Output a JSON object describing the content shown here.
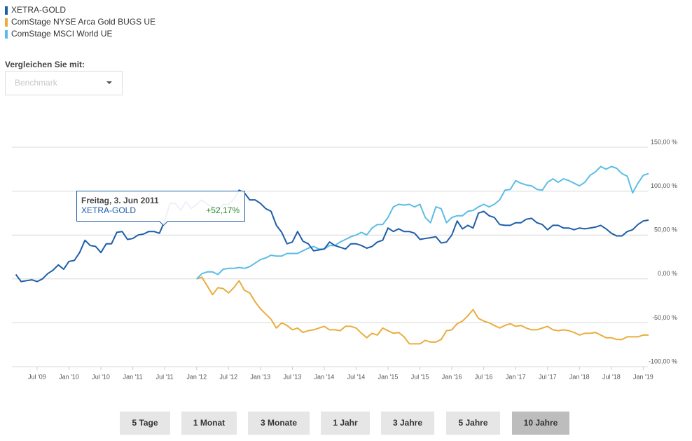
{
  "chart_data": {
    "type": "line",
    "x": [
      "2009-03",
      "2009-04",
      "2009-05",
      "2009-06",
      "2009-07",
      "2009-08",
      "2009-09",
      "2009-10",
      "2009-11",
      "2009-12",
      "2010-01",
      "2010-02",
      "2010-03",
      "2010-04",
      "2010-05",
      "2010-06",
      "2010-07",
      "2010-08",
      "2010-09",
      "2010-10",
      "2010-11",
      "2010-12",
      "2011-01",
      "2011-02",
      "2011-03",
      "2011-04",
      "2011-05",
      "2011-06",
      "2011-07",
      "2011-08",
      "2011-09",
      "2011-10",
      "2011-11",
      "2011-12",
      "2012-01",
      "2012-02",
      "2012-03",
      "2012-04",
      "2012-05",
      "2012-06",
      "2012-07",
      "2012-08",
      "2012-09",
      "2012-10",
      "2012-11",
      "2012-12",
      "2013-01",
      "2013-02",
      "2013-03",
      "2013-04",
      "2013-05",
      "2013-06",
      "2013-07",
      "2013-08",
      "2013-09",
      "2013-10",
      "2013-11",
      "2013-12",
      "2014-01",
      "2014-02",
      "2014-03",
      "2014-04",
      "2014-05",
      "2014-06",
      "2014-07",
      "2014-08",
      "2014-09",
      "2014-10",
      "2014-11",
      "2014-12",
      "2015-01",
      "2015-02",
      "2015-03",
      "2015-04",
      "2015-05",
      "2015-06",
      "2015-07",
      "2015-08",
      "2015-09",
      "2015-10",
      "2015-11",
      "2015-12",
      "2016-01",
      "2016-02",
      "2016-03",
      "2016-04",
      "2016-05",
      "2016-06",
      "2016-07",
      "2016-08",
      "2016-09",
      "2016-10",
      "2016-11",
      "2016-12",
      "2017-01",
      "2017-02",
      "2017-03",
      "2017-04",
      "2017-05",
      "2017-06",
      "2017-07",
      "2017-08",
      "2017-09",
      "2017-10",
      "2017-11",
      "2017-12",
      "2018-01",
      "2018-02",
      "2018-03",
      "2018-04",
      "2018-05",
      "2018-06",
      "2018-07",
      "2018-08",
      "2018-09",
      "2018-10",
      "2018-11",
      "2018-12",
      "2019-01",
      "2019-02"
    ],
    "series": [
      {
        "name": "XETRA-GOLD",
        "color": "#1d5ea8",
        "values": [
          5,
          -3,
          -2,
          -1,
          -3,
          0,
          6,
          10,
          16,
          11,
          20,
          21,
          30,
          44,
          38,
          37,
          30,
          40,
          40,
          53,
          54,
          45,
          46,
          50,
          51,
          54,
          54,
          52,
          66,
          86,
          86,
          78,
          88,
          80,
          85,
          90,
          85,
          82,
          78,
          85,
          85,
          91,
          101,
          98,
          90,
          90,
          86,
          80,
          77,
          61,
          53,
          40,
          42,
          54,
          43,
          40,
          32,
          33,
          34,
          42,
          38,
          36,
          34,
          40,
          40,
          38,
          35,
          37,
          42,
          44,
          58,
          54,
          57,
          54,
          54,
          52,
          45,
          46,
          47,
          48,
          41,
          42,
          50,
          66,
          57,
          61,
          58,
          75,
          77,
          72,
          70,
          62,
          61,
          61,
          64,
          64,
          68,
          69,
          64,
          62,
          56,
          61,
          61,
          58,
          58,
          56,
          58,
          57,
          58,
          59,
          61,
          57,
          52,
          49,
          49,
          54,
          56,
          62,
          66,
          67
        ]
      },
      {
        "name": "ComStage NYSE Arca Gold BUGS UE",
        "color": "#e9ad3e",
        "values": [
          null,
          null,
          null,
          null,
          null,
          null,
          null,
          null,
          null,
          null,
          null,
          null,
          null,
          null,
          null,
          null,
          null,
          null,
          null,
          null,
          null,
          null,
          null,
          null,
          null,
          null,
          null,
          null,
          null,
          null,
          null,
          null,
          null,
          null,
          0,
          2,
          -8,
          -18,
          -10,
          -11,
          -16,
          -10,
          -2,
          -13,
          -16,
          -26,
          -34,
          -40,
          -46,
          -56,
          -50,
          -53,
          -58,
          -56,
          -61,
          -59,
          -58,
          -56,
          -54,
          -58,
          -58,
          -59,
          -54,
          -54,
          -56,
          -62,
          -67,
          -62,
          -64,
          -56,
          -59,
          -62,
          -61,
          -66,
          -74,
          -74,
          -74,
          -70,
          -72,
          -72,
          -69,
          -59,
          -58,
          -51,
          -48,
          -42,
          -35,
          -45,
          -48,
          -50,
          -53,
          -56,
          -53,
          -51,
          -54,
          -53,
          -56,
          -58,
          -58,
          -56,
          -54,
          -58,
          -59,
          -58,
          -59,
          -61,
          -64,
          -62,
          -62,
          -61,
          -64,
          -67,
          -67,
          -69,
          -69,
          -66,
          -66,
          -66,
          -64,
          -64
        ]
      },
      {
        "name": "ComStage MSCI World UE",
        "color": "#5bbde6",
        "values": [
          null,
          null,
          null,
          null,
          null,
          null,
          null,
          null,
          null,
          null,
          null,
          null,
          null,
          null,
          null,
          null,
          null,
          null,
          null,
          null,
          null,
          null,
          null,
          null,
          null,
          null,
          null,
          null,
          null,
          null,
          null,
          null,
          null,
          null,
          0,
          6,
          8,
          8,
          5,
          11,
          12,
          12,
          13,
          12,
          14,
          18,
          22,
          24,
          27,
          26,
          26,
          29,
          29,
          29,
          32,
          35,
          37,
          34,
          34,
          38,
          38,
          42,
          45,
          48,
          50,
          53,
          50,
          58,
          62,
          62,
          70,
          82,
          85,
          84,
          85,
          82,
          85,
          70,
          64,
          82,
          80,
          64,
          70,
          72,
          72,
          77,
          78,
          82,
          85,
          82,
          85,
          90,
          101,
          102,
          112,
          109,
          107,
          106,
          102,
          101,
          110,
          114,
          110,
          114,
          112,
          109,
          106,
          110,
          118,
          122,
          128,
          125,
          128,
          126,
          120,
          117,
          98,
          109,
          118,
          120
        ]
      }
    ],
    "xlim": [
      "2009-02",
      "2019-02"
    ],
    "xticks": [
      {
        "value": "2009-07",
        "label": "Jul '09"
      },
      {
        "value": "2010-01",
        "label": "Jan '10"
      },
      {
        "value": "2010-07",
        "label": "Jul '10"
      },
      {
        "value": "2011-01",
        "label": "Jan '11"
      },
      {
        "value": "2011-07",
        "label": "Jul '11"
      },
      {
        "value": "2012-01",
        "label": "Jan '12"
      },
      {
        "value": "2012-07",
        "label": "Jul '12"
      },
      {
        "value": "2013-01",
        "label": "Jan '13"
      },
      {
        "value": "2013-07",
        "label": "Jul '13"
      },
      {
        "value": "2014-01",
        "label": "Jan '14"
      },
      {
        "value": "2014-07",
        "label": "Jul '14"
      },
      {
        "value": "2015-01",
        "label": "Jan '15"
      },
      {
        "value": "2015-07",
        "label": "Jul '15"
      },
      {
        "value": "2016-01",
        "label": "Jan '16"
      },
      {
        "value": "2016-07",
        "label": "Jul '16"
      },
      {
        "value": "2017-01",
        "label": "Jan '17"
      },
      {
        "value": "2017-07",
        "label": "Jul '17"
      },
      {
        "value": "2018-01",
        "label": "Jan '18"
      },
      {
        "value": "2018-07",
        "label": "Jul '18"
      },
      {
        "value": "2019-01",
        "label": "Jan '19"
      }
    ],
    "ylim": [
      -100,
      150
    ],
    "yticks": [
      {
        "value": -100,
        "label": "-100,00 %"
      },
      {
        "value": -50,
        "label": "-50,00 %"
      },
      {
        "value": 0,
        "label": "0,00 %"
      },
      {
        "value": 50,
        "label": "50,00 %"
      },
      {
        "value": 100,
        "label": "100,00 %"
      },
      {
        "value": 150,
        "label": "150,00 %"
      }
    ],
    "grid": true,
    "legend": "top-left",
    "tooltip": {
      "title": "Freitag, 3. Jun 2011",
      "series": "XETRA-GOLD",
      "value": "+52,17%"
    }
  },
  "compare": {
    "label": "Vergleichen Sie mit:",
    "placeholder": "Benchmark"
  },
  "ranges": {
    "buttons": [
      "5 Tage",
      "1 Monat",
      "3 Monate",
      "1 Jahr",
      "3 Jahre",
      "5 Jahre",
      "10 Jahre"
    ],
    "active": 6
  }
}
